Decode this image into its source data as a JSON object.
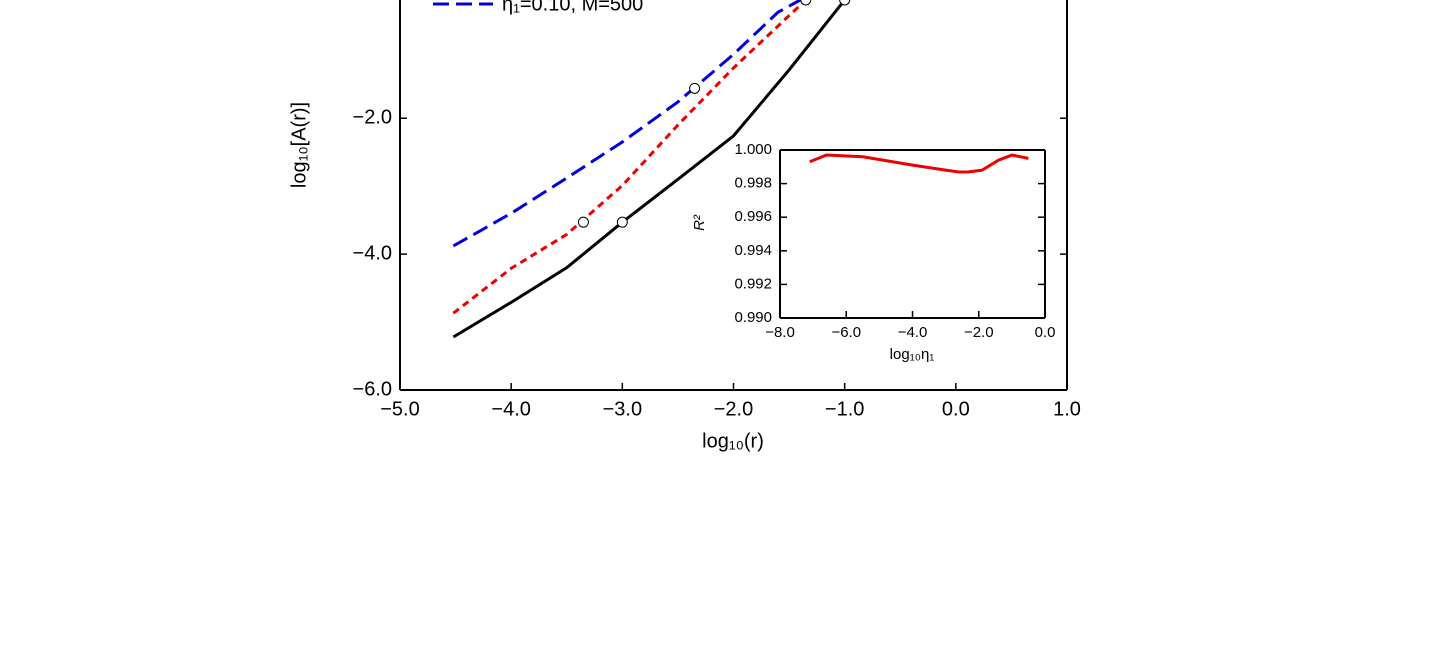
{
  "chart_data": [
    {
      "type": "line",
      "x_label": "log₁₀(r)",
      "y_label": "log₁₀[A(r)]",
      "xlim": [
        -5,
        1
      ],
      "ylim": [
        -6,
        -0.26
      ],
      "xticks": [
        {
          "value": -5,
          "label": "−5.0"
        },
        {
          "value": -4,
          "label": "−4.0"
        },
        {
          "value": -3,
          "label": "−3.0"
        },
        {
          "value": -2,
          "label": "−2.0"
        },
        {
          "value": -1,
          "label": "−1.0"
        },
        {
          "value": 0,
          "label": "0.0"
        },
        {
          "value": 1,
          "label": "1.0"
        }
      ],
      "yticks": [
        {
          "value": -6,
          "label": "−6.0"
        },
        {
          "value": -4,
          "label": "−4.0"
        },
        {
          "value": -2,
          "label": "−2.0"
        }
      ],
      "legend": "upper left",
      "series": [
        {
          "color": "#000000",
          "dash": "solid",
          "x": [
            -4.52,
            -4.0,
            -3.5,
            -3.0,
            -2.5,
            -2.0,
            -1.5,
            -1.0
          ],
          "values": [
            -5.22,
            -4.71,
            -4.2,
            -3.53,
            -2.9,
            -2.26,
            -1.29,
            -0.26
          ],
          "markers_x": [
            -3.0,
            -1.0
          ],
          "markers_y": [
            -3.53,
            -0.26
          ]
        },
        {
          "color": "#ee0000",
          "dash": "short",
          "x": [
            -4.52,
            -4.0,
            -3.5,
            -3.0,
            -2.5,
            -2.0,
            -1.5,
            -1.35
          ],
          "values": [
            -4.87,
            -4.21,
            -3.71,
            -2.99,
            -2.1,
            -1.26,
            -0.49,
            -0.26
          ],
          "markers_x": [
            -3.35,
            -1.35
          ],
          "markers_y": [
            -3.53,
            -0.26
          ]
        },
        {
          "name": "η₁=0.10, M=500",
          "color": "#0000dd",
          "dash": "long",
          "x": [
            -4.52,
            -4.0,
            -3.5,
            -3.0,
            -2.5,
            -2.0,
            -1.6,
            -1.4
          ],
          "values": [
            -3.88,
            -3.4,
            -2.88,
            -2.35,
            -1.76,
            -1.06,
            -0.44,
            -0.26
          ],
          "markers_x": [
            -2.35
          ],
          "markers_y": [
            -1.56
          ]
        }
      ]
    },
    {
      "type": "line",
      "x_label": "log₁₀η₁",
      "y_label": "R²",
      "xlim": [
        -8,
        0
      ],
      "ylim": [
        0.99,
        1.0
      ],
      "xticks": [
        {
          "value": -8,
          "label": "−8.0"
        },
        {
          "value": -6,
          "label": "−6.0"
        },
        {
          "value": -4,
          "label": "−4.0"
        },
        {
          "value": -2,
          "label": "−2.0"
        },
        {
          "value": 0,
          "label": "0.0"
        }
      ],
      "yticks": [
        {
          "value": 0.99,
          "label": "0.990"
        },
        {
          "value": 0.992,
          "label": "0.992"
        },
        {
          "value": 0.994,
          "label": "0.994"
        },
        {
          "value": 0.996,
          "label": "0.996"
        },
        {
          "value": 0.998,
          "label": "0.998"
        },
        {
          "value": 1.0,
          "label": "1.000"
        }
      ],
      "series": [
        {
          "color": "#ee0000",
          "dash": "solid",
          "x": [
            -7.1,
            -6.6,
            -5.5,
            -4.0,
            -3.0,
            -2.6,
            -2.3,
            -1.9,
            -1.4,
            -1.0,
            -0.5
          ],
          "values": [
            0.9993,
            0.9997,
            0.9996,
            0.9991,
            0.9988,
            0.99869,
            0.9987,
            0.9988,
            0.9994,
            0.9997,
            0.9995
          ]
        }
      ]
    }
  ]
}
